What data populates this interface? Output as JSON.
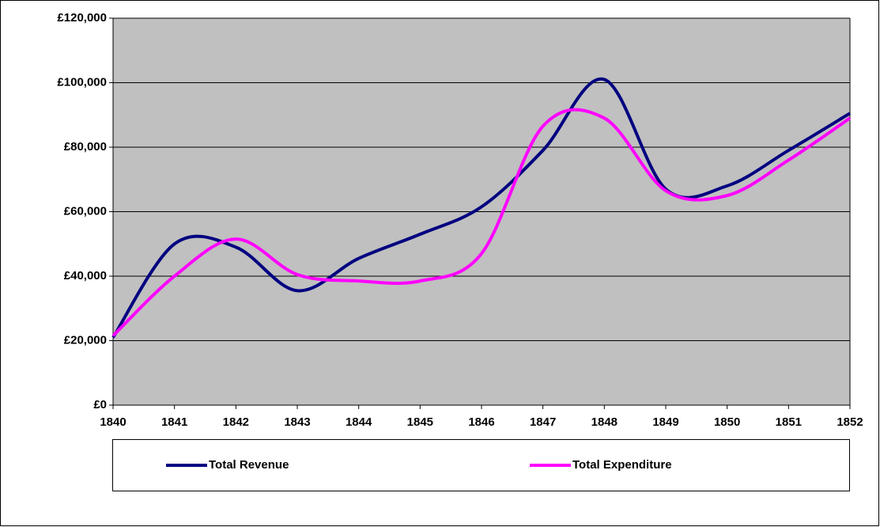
{
  "chart_data": {
    "type": "line",
    "x": [
      1840,
      1841,
      1842,
      1843,
      1844,
      1845,
      1846,
      1847,
      1848,
      1849,
      1850,
      1851,
      1852
    ],
    "series": [
      {
        "name": "Total Revenue",
        "color": "#000080",
        "values": [
          21000,
          50000,
          49000,
          35500,
          45500,
          53000,
          61500,
          79000,
          101000,
          67000,
          68000,
          79000,
          90500
        ]
      },
      {
        "name": "Total Expenditure",
        "color": "#ff00ff",
        "values": [
          21500,
          40000,
          51500,
          40500,
          38500,
          38500,
          47000,
          86500,
          89000,
          66500,
          65000,
          76000,
          89000
        ]
      }
    ],
    "xlim": [
      1840,
      1852
    ],
    "xticks": [
      1840,
      1841,
      1842,
      1843,
      1844,
      1845,
      1846,
      1847,
      1848,
      1849,
      1850,
      1851,
      1852
    ],
    "ylim": [
      0,
      120000
    ],
    "yticks": [
      {
        "value": 0,
        "label": "£0"
      },
      {
        "value": 20000,
        "label": "£20,000"
      },
      {
        "value": 40000,
        "label": "£40,000"
      },
      {
        "value": 60000,
        "label": "£60,000"
      },
      {
        "value": 80000,
        "label": "£80,000"
      },
      {
        "value": 100000,
        "label": "£100,000"
      },
      {
        "value": 120000,
        "label": "£120,000"
      }
    ],
    "grid": true,
    "smooth": true,
    "legend": "bottom"
  }
}
